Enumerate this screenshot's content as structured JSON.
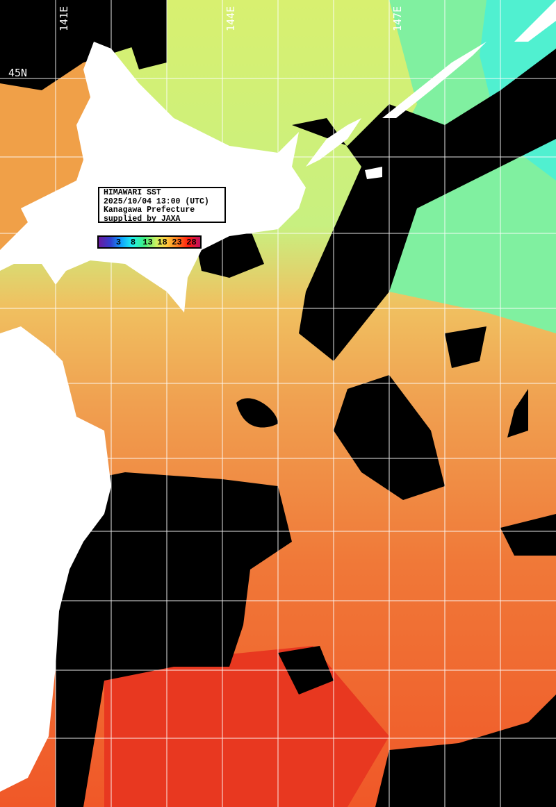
{
  "info": {
    "title": "HIMAWARI SST",
    "datetime": "2025/10/04 13:00 (UTC)",
    "source": "Kanagawa Prefecture",
    "credit": "supplied by JAXA"
  },
  "colorbar": {
    "ticks": [
      "3",
      "8",
      "13",
      "18",
      "23",
      "28"
    ],
    "unit_colors": [
      "#6a1aa0",
      "#10a0ff",
      "#40f080",
      "#d0f060",
      "#ff8020",
      "#ff2010",
      "#c01060"
    ]
  },
  "grid": {
    "lon_labels": [
      "141E",
      "144E",
      "147E"
    ],
    "lat_labels": [
      "45N"
    ]
  },
  "colors": {
    "land": "#ffffff",
    "cloud": "#000000",
    "cold_sea": "#60f0b0",
    "mid_sea": "#c8f070",
    "warm_sea": "#f0a050",
    "hot_sea": "#f04020"
  }
}
